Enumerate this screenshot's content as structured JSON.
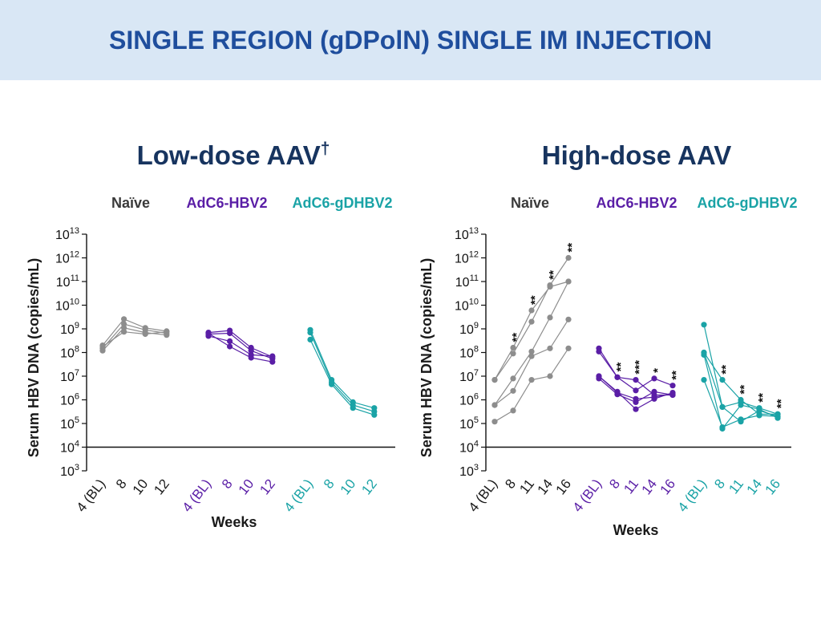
{
  "header": {
    "title": "SINGLE REGION (gDPolN) SINGLE IM INJECTION"
  },
  "colors": {
    "header_bg": "#d9e7f5",
    "header_text": "#1f4e9d",
    "chart_title": "#17345f",
    "axis": "#111111"
  },
  "chart_data": [
    {
      "type": "line",
      "title": "Low-dose AAV",
      "title_sup": "†",
      "ylabel": "Serum HBV DNA (copies/mL)",
      "xlabel": "Weeks",
      "yscale": "log",
      "ylim": [
        1000,
        10000000000000
      ],
      "ytick_base": "10",
      "ytick_exponents": [
        3,
        4,
        5,
        6,
        7,
        8,
        9,
        10,
        11,
        12,
        13
      ],
      "reference_line": 10000,
      "grid": false,
      "groups": [
        {
          "name": "Naïve",
          "color": "#8d8d8d",
          "label_color": "#3a3a3a",
          "tick_color": "#1a1a1a",
          "x": [
            "4 (BL)",
            "8",
            "10",
            "12"
          ],
          "series": [
            [
              200000000.0,
              2600000000.0,
              1100000000.0,
              800000000.0
            ],
            [
              150000000.0,
              1600000000.0,
              900000000.0,
              650000000.0
            ],
            [
              120000000.0,
              1100000000.0,
              700000000.0,
              550000000.0
            ],
            [
              180000000.0,
              750000000.0,
              600000000.0,
              750000000.0
            ]
          ],
          "significance": [
            "",
            "",
            "",
            ""
          ]
        },
        {
          "name": "AdC6-HBV2",
          "color": "#5a1ea6",
          "label_color": "#5a1ea6",
          "tick_color": "#5a1ea6",
          "x": [
            "4 (BL)",
            "8",
            "10",
            "12"
          ],
          "series": [
            [
              700000000.0,
              850000000.0,
              160000000.0,
              65000000.0
            ],
            [
              600000000.0,
              650000000.0,
              120000000.0,
              55000000.0
            ],
            [
              500000000.0,
              300000000.0,
              80000000.0,
              70000000.0
            ],
            [
              650000000.0,
              180000000.0,
              60000000.0,
              40000000.0
            ]
          ],
          "significance": [
            "",
            "",
            "",
            ""
          ]
        },
        {
          "name": "AdC6-gDHBV2",
          "color": "#1aa3a6",
          "label_color": "#1aa3a6",
          "tick_color": "#1aa3a6",
          "x": [
            "4 (BL)",
            "8",
            "10",
            "12"
          ],
          "series": [
            [
              900000000.0,
              7000000.0,
              800000.0,
              450000.0
            ],
            [
              700000000.0,
              5500000.0,
              600000.0,
              320000.0
            ],
            [
              350000000.0,
              4500000.0,
              450000.0,
              230000.0
            ]
          ],
          "significance": [
            "",
            "",
            "",
            ""
          ]
        }
      ]
    },
    {
      "type": "line",
      "title": "High-dose AAV",
      "title_sup": "",
      "ylabel": "Serum HBV DNA (copies/mL)",
      "xlabel": "Weeks",
      "yscale": "log",
      "ylim": [
        1000,
        10000000000000
      ],
      "ytick_base": "10",
      "ytick_exponents": [
        3,
        4,
        5,
        6,
        7,
        8,
        9,
        10,
        11,
        12,
        13
      ],
      "reference_line": 10000,
      "grid": false,
      "groups": [
        {
          "name": "Naïve",
          "color": "#8d8d8d",
          "label_color": "#3a3a3a",
          "tick_color": "#1a1a1a",
          "x": [
            "4 (BL)",
            "8",
            "11",
            "14",
            "16"
          ],
          "series": [
            [
              7000000.0,
              160000000.0,
              6000000000.0,
              60000000000.0,
              100000000000.0
            ],
            [
              7000000.0,
              90000000.0,
              2000000000.0,
              70000000000.0,
              1000000000000.0
            ],
            [
              600000.0,
              8000000.0,
              110000000.0,
              3000000000.0,
              100000000000.0
            ],
            [
              600000.0,
              2400000.0,
              70000000.0,
              150000000.0,
              2500000000.0
            ],
            [
              120000.0,
              350000.0,
              7000000.0,
              10000000.0,
              150000000.0
            ]
          ],
          "significance": [
            "",
            "**",
            "**",
            "**",
            "**"
          ]
        },
        {
          "name": "AdC6-HBV2",
          "color": "#5a1ea6",
          "label_color": "#5a1ea6",
          "tick_color": "#5a1ea6",
          "x": [
            "4 (BL)",
            "8",
            "11",
            "14",
            "16"
          ],
          "series": [
            [
              150000000.0,
              9000000.0,
              7000000.0,
              1600000.0,
              1600000.0
            ],
            [
              110000000.0,
              9000000.0,
              2500000.0,
              8000000.0,
              4000000.0
            ],
            [
              10000000.0,
              2200000.0,
              400000.0,
              1100000.0,
              2000000.0
            ],
            [
              8000000.0,
              1700000.0,
              800000.0,
              2200000.0,
              1600000.0
            ],
            [
              10000000.0,
              2000000.0,
              1100000.0,
              1300000.0,
              1800000.0
            ]
          ],
          "significance": [
            "",
            "**",
            "***",
            "*",
            "**"
          ]
        },
        {
          "name": "AdC6-gDHBV2",
          "color": "#1aa3a6",
          "label_color": "#1aa3a6",
          "tick_color": "#1aa3a6",
          "x": [
            "4 (BL)",
            "8",
            "11",
            "14",
            "16"
          ],
          "series": [
            [
              1500000000.0,
              500000.0,
              120000.0,
              350000.0,
              200000.0
            ],
            [
              100000000.0,
              7000000.0,
              1000000.0,
              250000.0,
              250000.0
            ],
            [
              80000000.0,
              60000.0,
              600000.0,
              400000.0,
              170000.0
            ],
            [
              7000000.0,
              70000.0,
              150000.0,
              220000.0,
              200000.0
            ],
            [
              100000000.0,
              500000.0,
              800000.0,
              450000.0,
              250000.0
            ]
          ],
          "significance": [
            "",
            "**",
            "**",
            "**",
            "**"
          ]
        }
      ]
    }
  ]
}
